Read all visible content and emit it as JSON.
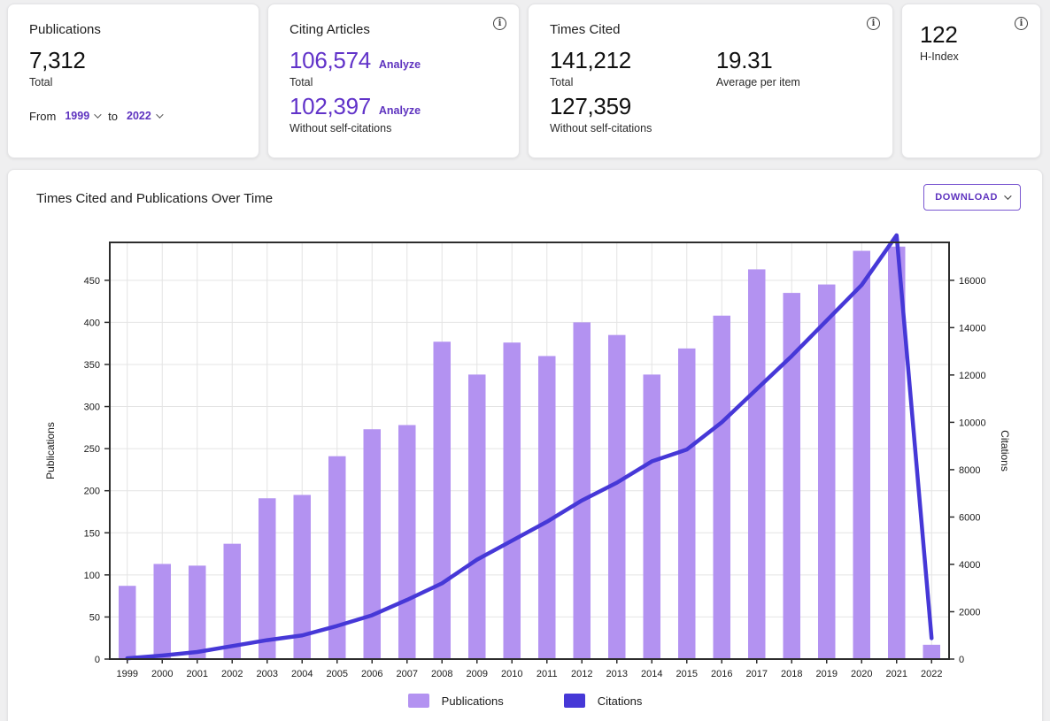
{
  "cards": {
    "publications": {
      "title": "Publications",
      "total_value": "7,312",
      "total_label": "Total",
      "range": {
        "from_label": "From",
        "from_value": "1999",
        "to_label": "to",
        "to_value": "2022"
      }
    },
    "citing_articles": {
      "title": "Citing Articles",
      "total_value": "106,574",
      "total_label": "Total",
      "analyze_label": "Analyze",
      "without_self_value": "102,397",
      "without_self_label": "Without self-citations"
    },
    "times_cited": {
      "title": "Times Cited",
      "total_value": "141,212",
      "total_label": "Total",
      "average_value": "19.31",
      "average_label": "Average per item",
      "without_self_value": "127,359",
      "without_self_label": "Without self-citations"
    },
    "h_index": {
      "value": "122",
      "label": "H-Index"
    }
  },
  "chart_panel": {
    "title": "Times Cited and Publications Over Time",
    "download_label": "DOWNLOAD"
  },
  "colors": {
    "accent_purple": "#5e33bf",
    "bar_purple": "#b392f1",
    "line_indigo": "#4638d7"
  },
  "chart_data": {
    "type": "bar+line",
    "title": "Times Cited and Publications Over Time",
    "categories": [
      1999,
      2000,
      2001,
      2002,
      2003,
      2004,
      2005,
      2006,
      2007,
      2008,
      2009,
      2010,
      2011,
      2012,
      2013,
      2014,
      2015,
      2016,
      2017,
      2018,
      2019,
      2020,
      2021,
      2022
    ],
    "series": [
      {
        "name": "Publications",
        "type": "bar",
        "axis": "left",
        "color": "#b392f1",
        "values": [
          87,
          113,
          111,
          137,
          191,
          195,
          241,
          273,
          278,
          377,
          338,
          376,
          360,
          400,
          385,
          338,
          369,
          408,
          463,
          435,
          445,
          485,
          490,
          17
        ]
      },
      {
        "name": "Citations",
        "type": "line",
        "axis": "right",
        "color": "#4638d7",
        "values": [
          32,
          150,
          300,
          550,
          800,
          1000,
          1400,
          1850,
          2500,
          3200,
          4200,
          5000,
          5800,
          6700,
          7450,
          8350,
          8850,
          10000,
          11400,
          12800,
          14300,
          15800,
          17900,
          880
        ]
      }
    ],
    "left_axis": {
      "label": "Publications",
      "ticks": [
        0,
        50,
        100,
        150,
        200,
        250,
        300,
        350,
        400,
        450
      ],
      "max": 495
    },
    "right_axis": {
      "label": "Citations",
      "ticks": [
        0,
        2000,
        4000,
        6000,
        8000,
        10000,
        12000,
        14000,
        16000
      ],
      "max": 17600
    },
    "grid": true,
    "legend_position": "bottom",
    "legend": [
      {
        "label": "Publications",
        "color": "#b392f1"
      },
      {
        "label": "Citations",
        "color": "#4638d7"
      }
    ]
  }
}
